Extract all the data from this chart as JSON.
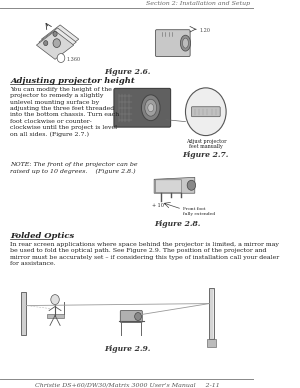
{
  "bg_color": "#ffffff",
  "header_line_color": "#888888",
  "footer_line_color": "#888888",
  "header_text": "Section 2: Installation and Setup",
  "footer_text": "Christie DS+60/DW30/Matrix 3000 User's Manual     2-11",
  "header_text_color": "#666666",
  "footer_text_color": "#555555",
  "fig26_caption": "Figure 2.6.",
  "fig27_caption": "Figure 2.7.",
  "fig28_caption": "Figure 2.8.",
  "fig29_caption": "Figure 2.9.",
  "section_title": "Adjusting projector height",
  "body_text1": "You can modify the height of the\nprojector to remedy a slightly\nunlevel mounting surface by\nadjusting the three feet threaded\ninto the bottom chassis. Turn each\nfoot clockwise or counter-\nclockwise until the project is level\non all sides. (Figure 2.7.)",
  "note_text": "NOTE: The front of the projector can be\nraised up to 10 degrees.    (Figure 2.8.)",
  "section2_title": "Folded Optics",
  "body_text2": "In rear screen applications where space behind the projector is limited, a mirror may\nbe used to fold the optical path. See Figure 2.9. The position of the projector and\nmirror must be accurately set – if considering this type of installation call your dealer\nfor assistance.",
  "text_color": "#222222",
  "figure_label_color": "#333333",
  "fig_caption_color": "#444444",
  "detail_color": "#999999"
}
